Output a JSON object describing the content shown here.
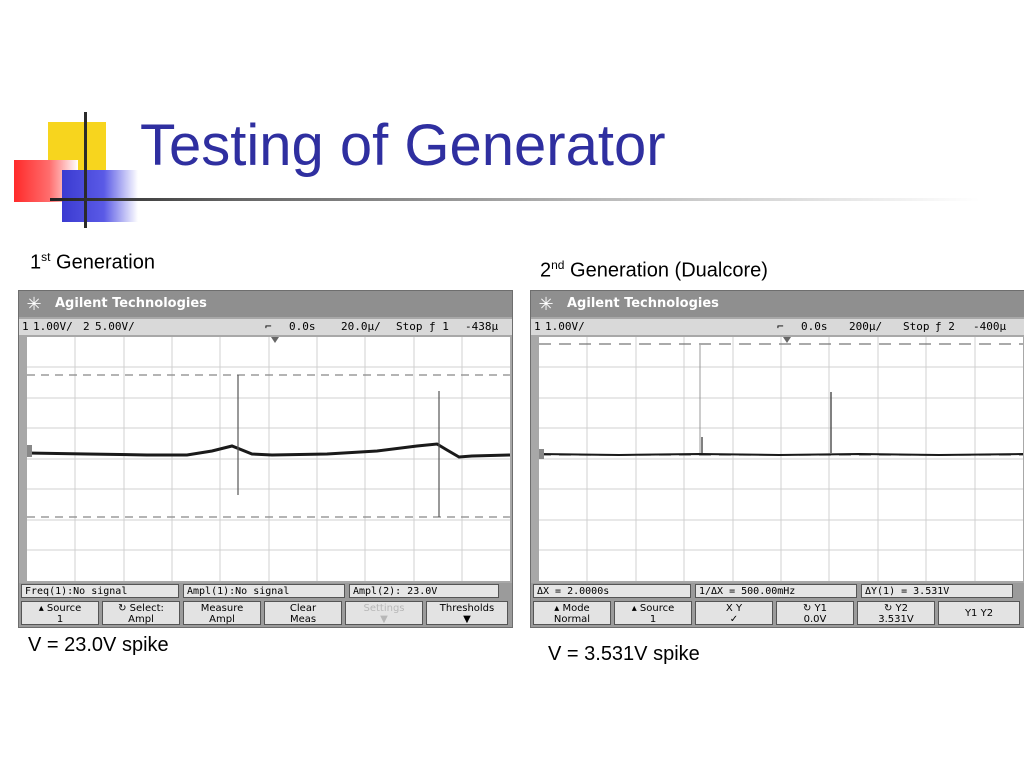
{
  "slide": {
    "title": "Testing of Generator"
  },
  "left": {
    "caption_main": "1",
    "caption_sup": "st",
    "caption_rest": " Generation",
    "result": "V = 23.0V spike",
    "scope": {
      "brand": "Agilent Technologies",
      "logo_icon": "starburst-icon",
      "status": {
        "ch1": "1",
        "ch1_scale": "1.00V/",
        "ch2": "2",
        "ch2_scale": "5.00V/",
        "delay": "0.0s",
        "timebase": "20.0µ/",
        "run_state": "Stop",
        "trigger": "ƒ 1",
        "trigger_level": "-438µ"
      },
      "measurements": [
        "Freq(1):No signal",
        "Ampl(1):No signal",
        "Ampl(2):  23.0V"
      ],
      "softkeys": [
        {
          "top": "▴ Source",
          "bottom": "1",
          "disabled": false
        },
        {
          "top": "↻ Select:",
          "bottom": "Ampl",
          "disabled": false
        },
        {
          "top": "Measure",
          "bottom": "Ampl",
          "disabled": false
        },
        {
          "top": "Clear",
          "bottom": "Meas",
          "disabled": false
        },
        {
          "top": "Settings",
          "bottom": "▼",
          "disabled": true
        },
        {
          "top": "Thresholds",
          "bottom": "▼",
          "disabled": false
        }
      ]
    }
  },
  "right": {
    "caption_main": "2",
    "caption_sup": "nd",
    "caption_rest": " Generation (Dualcore)",
    "result": "V = 3.531V spike",
    "scope": {
      "brand": "Agilent Technologies",
      "logo_icon": "starburst-icon",
      "status": {
        "ch1": "1",
        "ch1_scale": "1.00V/",
        "delay": "0.0s",
        "timebase": "200µ/",
        "run_state": "Stop",
        "trigger": "ƒ 2",
        "trigger_level": "-400µ"
      },
      "measurements": [
        "ΔX = 2.0000s",
        "1/ΔX = 500.00mHz",
        "ΔY(1) = 3.531V"
      ],
      "softkeys": [
        {
          "top": "▴ Mode",
          "bottom": "Normal",
          "disabled": false
        },
        {
          "top": "▴ Source",
          "bottom": "1",
          "disabled": false
        },
        {
          "top": "X    Y",
          "bottom": "✓",
          "disabled": false
        },
        {
          "top": "↻ Y1",
          "bottom": "0.0V",
          "disabled": false
        },
        {
          "top": "↻ Y2",
          "bottom": "3.531V",
          "disabled": false
        },
        {
          "top": "Y1 Y2",
          "bottom": "",
          "disabled": false
        }
      ]
    }
  },
  "colors": {
    "title": "#2f2fa0",
    "scope_bezel": "#a8a8a8",
    "trace": "#1a1a1a",
    "grid": "#cfcfcf"
  }
}
